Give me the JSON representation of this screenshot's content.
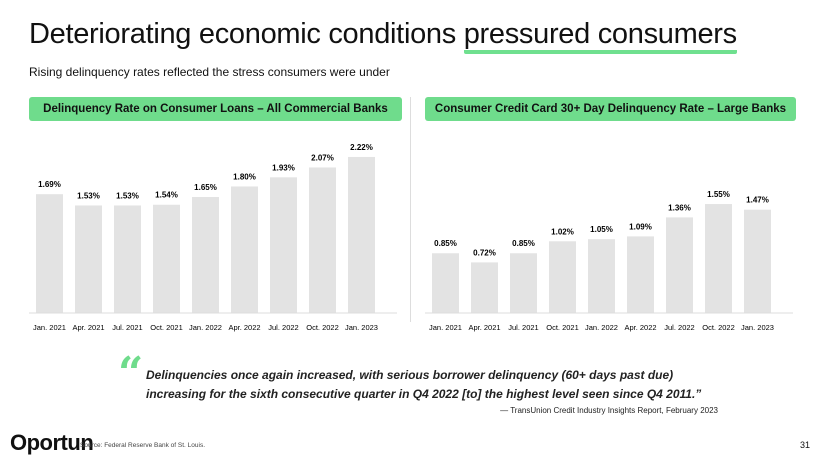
{
  "header": {
    "title_a": "Deteriorating economic conditions ",
    "title_b": "pressured consumers",
    "subtitle": "Rising delinquency rates reflected the stress consumers were under"
  },
  "colors": {
    "accent": "#6fdc8c",
    "bar": "#e3e3e3"
  },
  "chart_data": [
    {
      "type": "bar",
      "title": "Delinquency Rate on Consumer Loans – All Commercial Banks",
      "categories": [
        "Jan. 2021",
        "Apr. 2021",
        "Jul. 2021",
        "Oct. 2021",
        "Jan. 2022",
        "Apr. 2022",
        "Jul. 2022",
        "Oct. 2022",
        "Jan. 2023"
      ],
      "values": [
        1.69,
        1.53,
        1.53,
        1.54,
        1.65,
        1.8,
        1.93,
        2.07,
        2.22
      ],
      "labels": [
        "1.69%",
        "1.53%",
        "1.53%",
        "1.54%",
        "1.65%",
        "1.80%",
        "1.93%",
        "2.07%",
        "2.22%"
      ],
      "ylim": [
        0,
        2.4
      ],
      "grid": false
    },
    {
      "type": "bar",
      "title": "Consumer Credit Card 30+ Day Delinquency Rate – Large Banks",
      "categories": [
        "Jan. 2021",
        "Apr. 2021",
        "Jul. 2021",
        "Oct. 2021",
        "Jan. 2022",
        "Apr. 2022",
        "Jul. 2022",
        "Oct. 2022",
        "Jan. 2023"
      ],
      "values": [
        0.85,
        0.72,
        0.85,
        1.02,
        1.05,
        1.09,
        1.36,
        1.55,
        1.47
      ],
      "labels": [
        "0.85%",
        "0.72%",
        "0.85%",
        "1.02%",
        "1.05%",
        "1.09%",
        "1.36%",
        "1.55%",
        "1.47%"
      ],
      "ylim": [
        0,
        2.4
      ],
      "grid": false
    }
  ],
  "quote": {
    "line1": "Delinquencies once again increased, with serious borrower delinquency (60+ days past due)",
    "line2": "increasing for the sixth consecutive quarter in Q4 2022 [to] the highest level seen since Q4 2011.”",
    "attribution": "— TransUnion Credit Industry Insights Report, February 2023"
  },
  "footer": {
    "logo": "Oportun",
    "source": "Source: Federal Reserve Bank of St. Louis.",
    "page": "31"
  }
}
